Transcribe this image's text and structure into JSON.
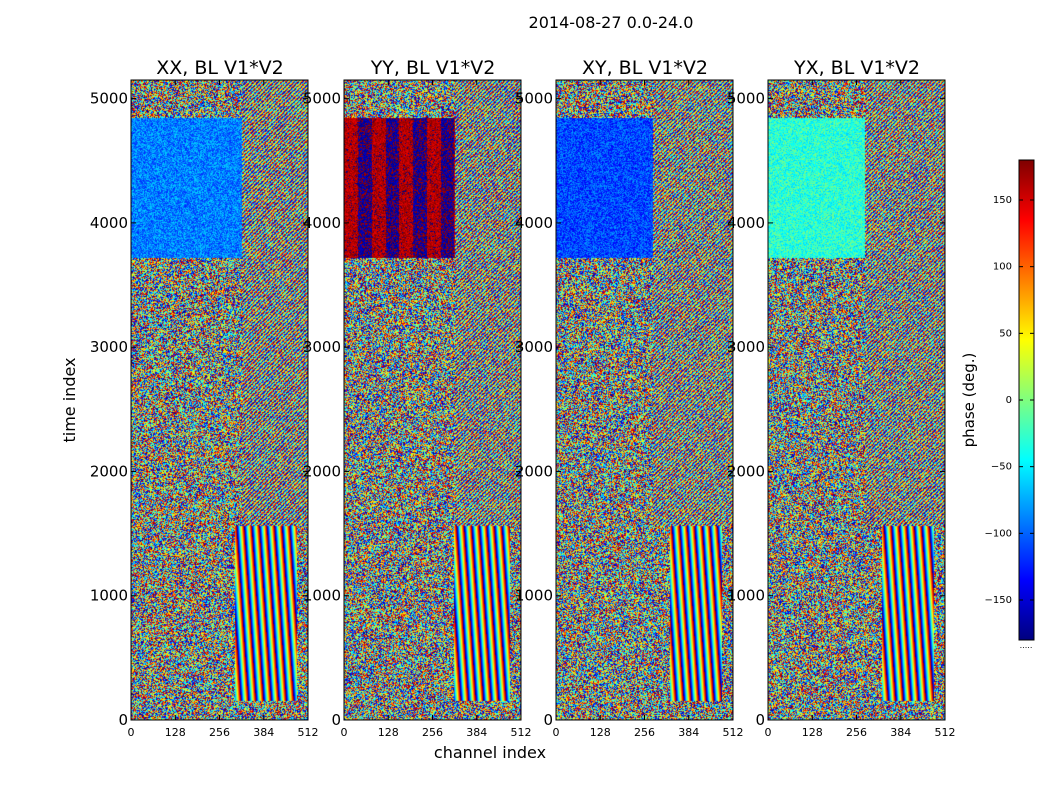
{
  "figure": {
    "title": "2014-08-27 0.0-24.0",
    "xlabel": "channel index",
    "ylabel": "time index"
  },
  "colorbar": {
    "label": "phase (deg.)",
    "range": [
      -180,
      180
    ],
    "ticks": [
      "−150",
      "−100",
      "−50",
      "0",
      "50",
      "100",
      "150"
    ],
    "tick_values": [
      -150,
      -100,
      -50,
      0,
      50,
      100,
      150
    ],
    "colors": [
      "#00007f",
      "#0000ff",
      "#007fff",
      "#00ffff",
      "#7fff7f",
      "#ffff00",
      "#ff7f00",
      "#ff0000",
      "#7f0000"
    ],
    "footnote": "....."
  },
  "chart_data": [
    {
      "type": "heatmap",
      "title": "XX, BL V1*V2",
      "x_label": "channel index",
      "y_label": "time index",
      "xlim": [
        0,
        512
      ],
      "ylim": [
        0,
        5150
      ],
      "x_ticks": [
        "0",
        "128",
        "256",
        "384",
        "512"
      ],
      "y_ticks": [
        "0",
        "1000",
        "2000",
        "3000",
        "4000",
        "5000"
      ],
      "value_range_deg": [
        -180,
        180
      ],
      "features": {
        "coherent_band_time": [
          3720,
          4850
        ],
        "coherent_band_channels": [
          0,
          320
        ],
        "coherent_phase_deg": -90,
        "fringe_time": [
          150,
          1560
        ],
        "fringe_channels": [
          300,
          480
        ]
      }
    },
    {
      "type": "heatmap",
      "title": "YY, BL V1*V2",
      "x_label": "channel index",
      "y_label": "time index",
      "xlim": [
        0,
        512
      ],
      "ylim": [
        0,
        5150
      ],
      "x_ticks": [
        "0",
        "128",
        "256",
        "384",
        "512"
      ],
      "y_ticks": [
        "0",
        "1000",
        "2000",
        "3000",
        "4000",
        "5000"
      ],
      "value_range_deg": [
        -180,
        180
      ],
      "features": {
        "coherent_band_time": [
          3720,
          4850
        ],
        "coherent_band_channels": [
          0,
          320
        ],
        "coherent_phase_deg": 180,
        "fringe_time": [
          150,
          1560
        ],
        "fringe_channels": [
          320,
          480
        ]
      }
    },
    {
      "type": "heatmap",
      "title": "XY, BL V1*V2",
      "x_label": "channel index",
      "y_label": "time index",
      "xlim": [
        0,
        512
      ],
      "ylim": [
        0,
        5150
      ],
      "x_ticks": [
        "0",
        "128",
        "256",
        "384",
        "512"
      ],
      "y_ticks": [
        "0",
        "1000",
        "2000",
        "3000",
        "4000",
        "5000"
      ],
      "value_range_deg": [
        -180,
        180
      ],
      "features": {
        "coherent_band_time": [
          3720,
          4850
        ],
        "coherent_band_channels": [
          0,
          280
        ],
        "coherent_phase_deg": -110,
        "fringe_time": [
          150,
          1560
        ],
        "fringe_channels": [
          330,
          480
        ]
      }
    },
    {
      "type": "heatmap",
      "title": "YX, BL V1*V2",
      "x_label": "channel index",
      "y_label": "time index",
      "xlim": [
        0,
        512
      ],
      "ylim": [
        0,
        5150
      ],
      "x_ticks": [
        "0",
        "128",
        "256",
        "384",
        "512"
      ],
      "y_ticks": [
        "0",
        "1000",
        "2000",
        "3000",
        "4000",
        "5000"
      ],
      "value_range_deg": [
        -180,
        180
      ],
      "features": {
        "coherent_band_time": [
          3720,
          4850
        ],
        "coherent_band_channels": [
          0,
          280
        ],
        "coherent_phase_deg": -30,
        "fringe_time": [
          150,
          1560
        ],
        "fringe_channels": [
          330,
          480
        ]
      }
    }
  ]
}
